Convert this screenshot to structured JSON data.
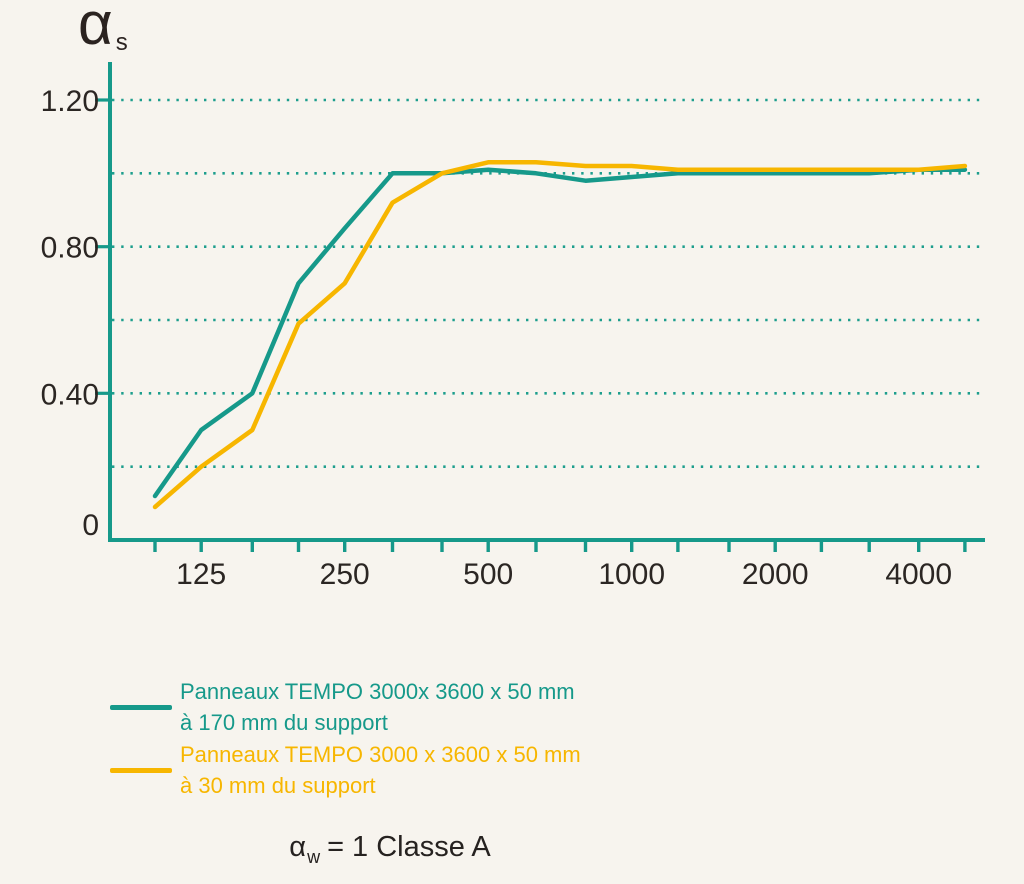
{
  "figure": {
    "y_axis_title": {
      "alpha": "α",
      "sub": "s"
    },
    "annotation": {
      "alpha": "α",
      "sub": "w",
      "rest": "= 1 Classe A"
    },
    "legend": {
      "items": [
        {
          "line1": "Panneaux TEMPO 3000x 3600 x 50 mm",
          "line2": "à 170 mm du support",
          "color": "#16998a"
        },
        {
          "line1": "Panneaux TEMPO 3000 x 3600 x 50 mm",
          "line2": "à 30 mm du support",
          "color": "#f7b600"
        }
      ]
    }
  },
  "chart_data": {
    "type": "line",
    "title": "",
    "xlabel": "",
    "ylabel": "αs",
    "x_scale": "log",
    "grid": "horizontal-dotted",
    "legend_position": "bottom-left",
    "background": "#f7f4ee",
    "axis_color": "#16998a",
    "grid_color": "#1d9e8d",
    "text_color": "#2b2623",
    "ylim": [
      0,
      1.26
    ],
    "x": [
      100,
      125,
      160,
      200,
      250,
      315,
      400,
      500,
      630,
      800,
      1000,
      1250,
      1600,
      2000,
      2500,
      3150,
      4000,
      5000
    ],
    "x_labeled_ticks": [
      125,
      250,
      500,
      1000,
      2000,
      4000
    ],
    "y_ticks": [
      {
        "value": 1.2,
        "label": "1.20"
      },
      {
        "value": 0.8,
        "label": "0.80"
      },
      {
        "value": 0.4,
        "label": "0.40"
      },
      {
        "value": 0,
        "label": "0"
      }
    ],
    "gridlines": [
      0.2,
      0.4,
      0.6,
      0.8,
      1.0,
      1.2
    ],
    "series": [
      {
        "name": "Panneaux TEMPO 3000x 3600 x 50 mm à 170 mm du support",
        "color": "#16998a",
        "values": [
          0.12,
          0.3,
          0.4,
          0.7,
          0.85,
          1.0,
          1.0,
          1.01,
          1.0,
          0.98,
          0.99,
          1.0,
          1.0,
          1.0,
          1.0,
          1.0,
          1.01,
          1.01
        ]
      },
      {
        "name": "Panneaux TEMPO 3000 x 3600 x 50 mm à 30 mm du support",
        "color": "#f7b600",
        "values": [
          0.09,
          0.2,
          0.3,
          0.59,
          0.7,
          0.92,
          1.0,
          1.03,
          1.03,
          1.02,
          1.02,
          1.01,
          1.01,
          1.01,
          1.01,
          1.01,
          1.01,
          1.02
        ]
      }
    ],
    "annotation": "αw = 1 Classe A"
  }
}
